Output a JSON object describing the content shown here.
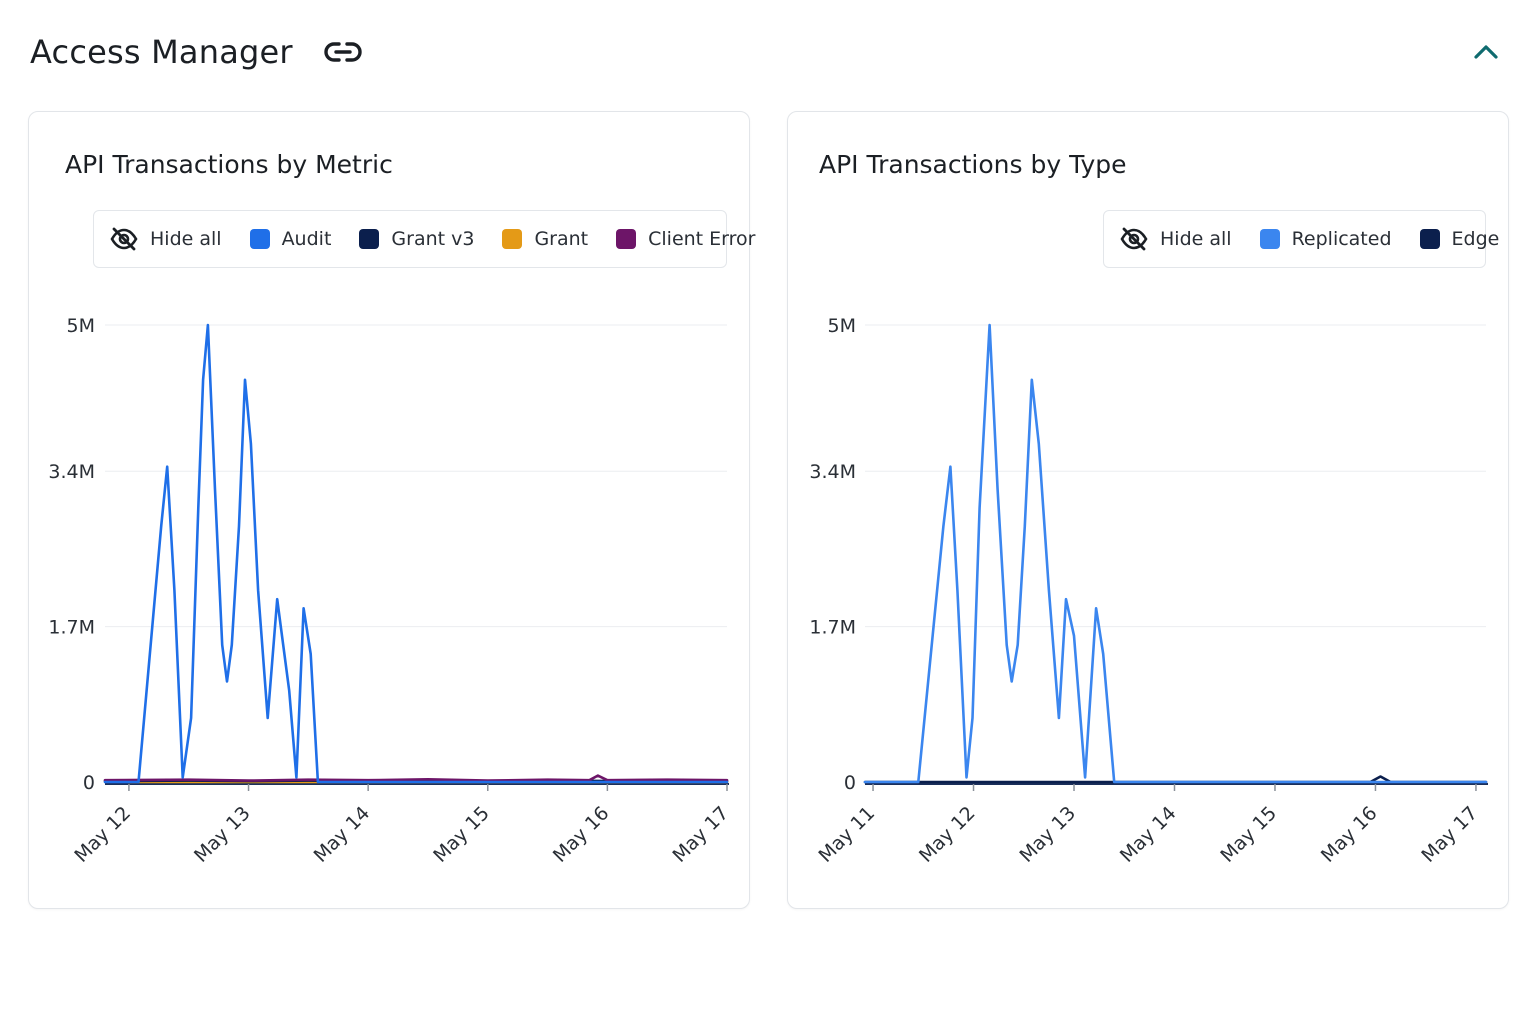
{
  "header": {
    "title": "Access Manager"
  },
  "icons": {
    "link": "link-icon",
    "collapse": "chevron-up-icon",
    "hide": "eye-off-icon"
  },
  "colors": {
    "accent": "#0f6b6f",
    "audit": "#1f6fe8",
    "grant_v3": "#0b1f4d",
    "grant": "#e49a17",
    "client_error": "#6d1568",
    "replicated": "#3b86ef",
    "edge": "#0b1f4d"
  },
  "charts": [
    {
      "legend": {
        "hide_all": "Hide all",
        "items": [
          {
            "label": "Audit",
            "color": "#1f6fe8"
          },
          {
            "label": "Grant v3",
            "color": "#0b1f4d"
          },
          {
            "label": "Grant",
            "color": "#e49a17"
          },
          {
            "label": "Client Error",
            "color": "#6d1568"
          }
        ]
      }
    },
    {
      "legend": {
        "hide_all": "Hide all",
        "items": [
          {
            "label": "Replicated",
            "color": "#3b86ef"
          },
          {
            "label": "Edge",
            "color": "#0b1f4d"
          }
        ]
      }
    }
  ],
  "chart_data": [
    {
      "type": "line",
      "title": "API Transactions by Metric",
      "xlabel": "",
      "ylabel": "",
      "x_range": [
        11.8,
        17.0
      ],
      "ylim": [
        0,
        5000000
      ],
      "y_ticks": [
        0,
        1700000,
        3400000,
        5000000
      ],
      "y_tick_labels": [
        "0",
        "1.7M",
        "3.4M",
        "5M"
      ],
      "x_ticks": [
        12,
        13,
        14,
        15,
        16,
        17
      ],
      "x_tick_labels": [
        "May 12",
        "May 13",
        "May 14",
        "May 15",
        "May 16",
        "May 17"
      ],
      "grid": true,
      "legend_position": "top",
      "series": [
        {
          "name": "Audit",
          "color": "#1f6fe8",
          "x": [
            11.8,
            12.08,
            12.27,
            12.32,
            12.38,
            12.45,
            12.52,
            12.58,
            12.62,
            12.66,
            12.72,
            12.78,
            12.82,
            12.86,
            12.92,
            12.97,
            13.02,
            13.08,
            13.16,
            13.24,
            13.28,
            13.34,
            13.4,
            13.46,
            13.52,
            13.58,
            13.68,
            14.0,
            15.0,
            16.0,
            17.0
          ],
          "y": [
            0,
            0,
            2800000,
            3450000,
            2100000,
            50000,
            700000,
            3000000,
            4400000,
            5000000,
            3200000,
            1500000,
            1100000,
            1500000,
            2800000,
            4400000,
            3700000,
            2100000,
            700000,
            2000000,
            1600000,
            1000000,
            50000,
            1900000,
            1400000,
            0,
            0,
            0,
            0,
            0,
            0
          ]
        },
        {
          "name": "Grant v3",
          "color": "#0b1f4d",
          "x": [
            11.8,
            12.5,
            13.0,
            13.5,
            14.0,
            14.5,
            15.0,
            15.5,
            16.0,
            16.5,
            17.0
          ],
          "y": [
            10000,
            15000,
            10000,
            15000,
            10000,
            15000,
            10000,
            15000,
            10000,
            10000,
            10000
          ]
        },
        {
          "name": "Grant",
          "color": "#e49a17",
          "x": [
            12.0,
            13.0,
            14.0,
            15.0,
            16.0,
            17.0
          ],
          "y": [
            0,
            0,
            0,
            0,
            0,
            0
          ]
        },
        {
          "name": "Client Error",
          "color": "#6d1568",
          "x": [
            11.8,
            12.5,
            13.0,
            13.5,
            14.0,
            14.5,
            15.0,
            15.5,
            15.85,
            15.92,
            16.0,
            16.5,
            17.0
          ],
          "y": [
            20000,
            25000,
            15000,
            25000,
            20000,
            30000,
            15000,
            25000,
            20000,
            70000,
            20000,
            25000,
            20000
          ]
        }
      ]
    },
    {
      "type": "line",
      "title": "API Transactions by Type",
      "xlabel": "",
      "ylabel": "",
      "x_range": [
        10.92,
        17.1
      ],
      "ylim": [
        0,
        5000000
      ],
      "y_ticks": [
        0,
        1700000,
        3400000,
        5000000
      ],
      "y_tick_labels": [
        "0",
        "1.7M",
        "3.4M",
        "5M"
      ],
      "x_ticks": [
        11,
        12,
        13,
        14,
        15,
        16,
        17
      ],
      "x_tick_labels": [
        "May 11",
        "May 12",
        "May 13",
        "May 14",
        "May 15",
        "May 16",
        "May 17"
      ],
      "grid": true,
      "legend_position": "top-right",
      "series": [
        {
          "name": "Replicated",
          "color": "#3b86ef",
          "x": [
            10.92,
            11.45,
            11.7,
            11.77,
            11.84,
            11.93,
            11.99,
            12.06,
            12.16,
            12.24,
            12.33,
            12.38,
            12.44,
            12.51,
            12.58,
            12.65,
            12.75,
            12.85,
            12.92,
            13.0,
            13.11,
            13.22,
            13.29,
            13.4,
            13.6,
            14.0,
            15.0,
            16.0,
            17.1
          ],
          "y": [
            0,
            0,
            2800000,
            3450000,
            2100000,
            50000,
            700000,
            3000000,
            5000000,
            3200000,
            1500000,
            1100000,
            1500000,
            2800000,
            4400000,
            3700000,
            2100000,
            700000,
            2000000,
            1600000,
            50000,
            1900000,
            1400000,
            0,
            0,
            0,
            0,
            0,
            0
          ]
        },
        {
          "name": "Edge",
          "color": "#0b1f4d",
          "x": [
            10.92,
            14.0,
            15.0,
            15.95,
            16.05,
            16.15,
            17.1
          ],
          "y": [
            0,
            0,
            0,
            0,
            60000,
            0,
            0
          ]
        }
      ]
    }
  ]
}
